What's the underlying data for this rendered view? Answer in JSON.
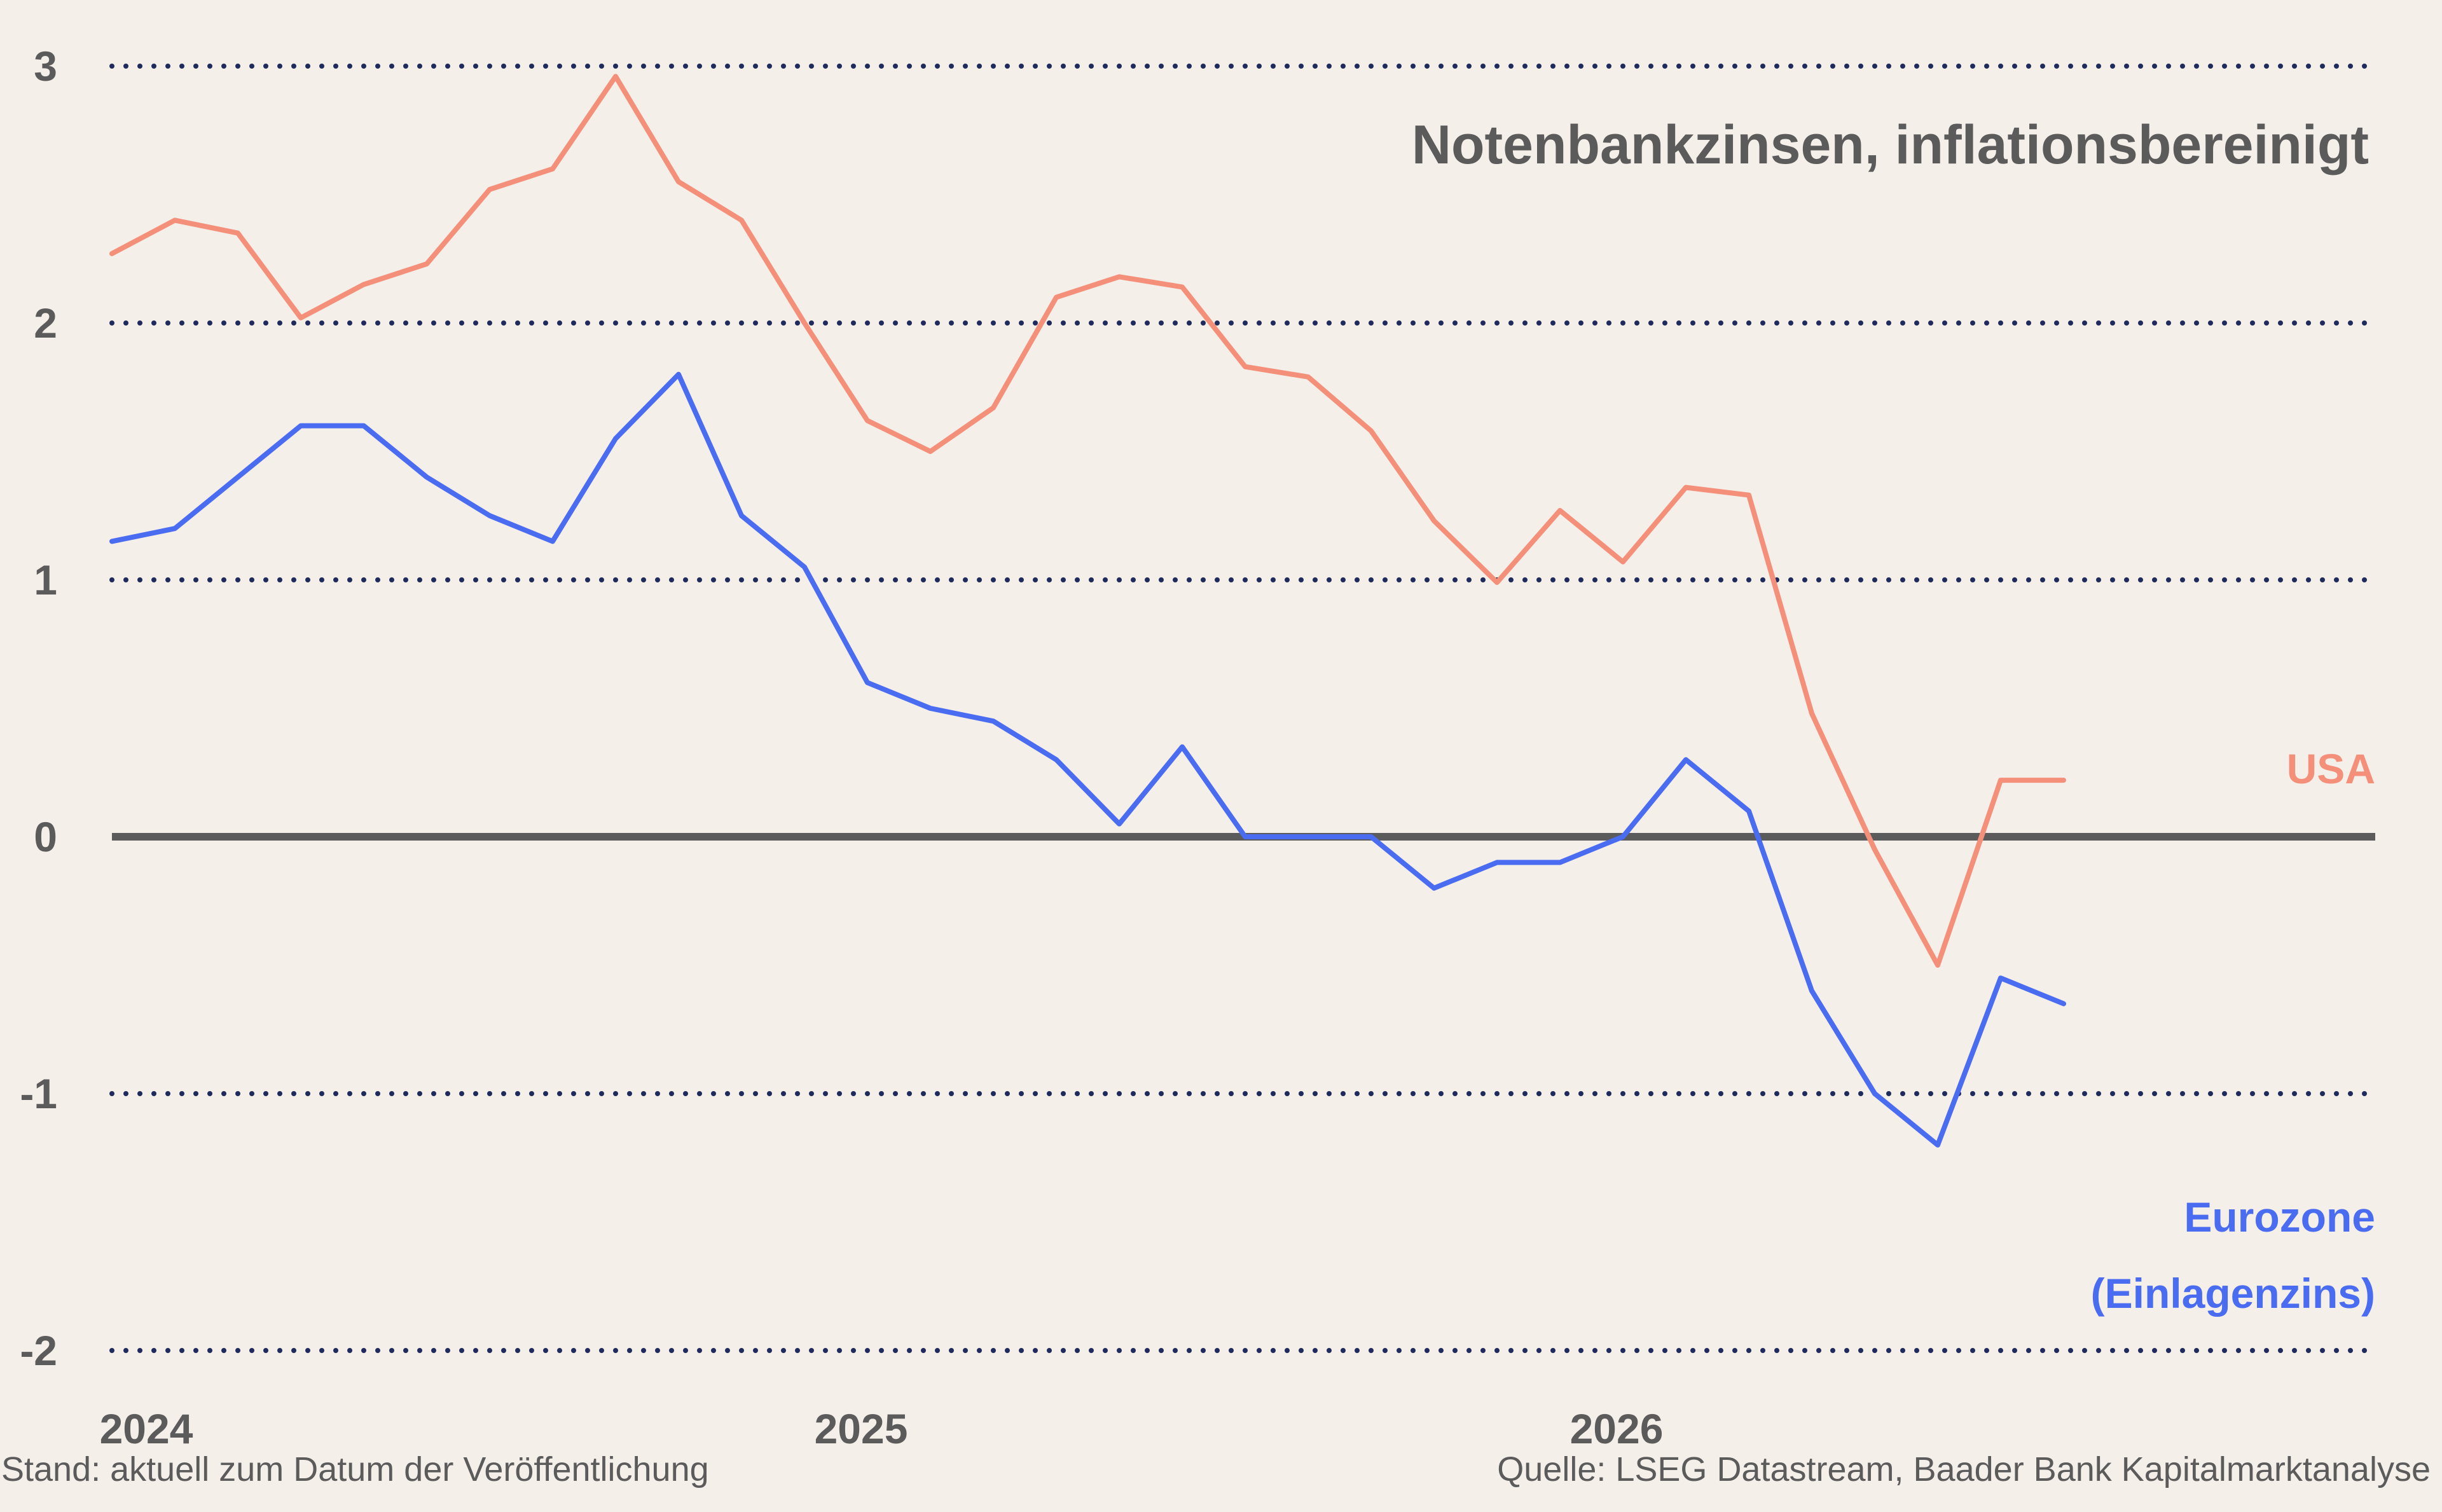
{
  "chart_data": {
    "type": "line",
    "title": "Notenbankzinsen, inflationsbereinigt",
    "ylim": [
      -2,
      3
    ],
    "yticks": [
      3,
      2,
      1,
      0,
      -1,
      -2
    ],
    "xlim": [
      "2024-01",
      "2026-12"
    ],
    "xticks": [
      {
        "label": "2024",
        "x": "2024-01"
      },
      {
        "label": "2025",
        "x": "2025-01"
      },
      {
        "label": "2026",
        "x": "2026-01"
      }
    ],
    "grid": "dotted horizontal",
    "zero_line": true,
    "x": [
      "2024-01",
      "2024-02",
      "2024-03",
      "2024-04",
      "2024-05",
      "2024-06",
      "2024-07",
      "2024-08",
      "2024-09",
      "2024-10",
      "2024-11",
      "2024-12",
      "2025-01",
      "2025-02",
      "2025-03",
      "2025-04",
      "2025-05",
      "2025-06",
      "2025-07",
      "2025-08",
      "2025-09",
      "2025-10",
      "2025-11",
      "2025-12",
      "2026-01",
      "2026-02",
      "2026-03",
      "2026-04",
      "2026-05",
      "2026-06",
      "2026-07",
      "2026-08",
      "2026-09",
      "2026-10"
    ],
    "series": [
      {
        "name": "USA",
        "color": "#f4907a",
        "values": [
          2.27,
          2.4,
          2.35,
          2.02,
          2.15,
          2.23,
          2.52,
          2.6,
          2.96,
          2.55,
          2.4,
          2.0,
          1.62,
          1.5,
          1.67,
          2.1,
          2.18,
          2.14,
          1.83,
          1.79,
          1.58,
          1.23,
          0.99,
          1.27,
          1.07,
          1.36,
          1.33,
          0.48,
          -0.05,
          -0.5,
          0.22,
          0.22,
          null,
          null
        ]
      },
      {
        "name": "Eurozone (Einlagenzins)",
        "color": "#4a6cf0",
        "values": [
          1.15,
          1.2,
          1.4,
          1.6,
          1.6,
          1.4,
          1.25,
          1.15,
          1.55,
          1.8,
          1.25,
          1.05,
          0.6,
          0.5,
          0.45,
          0.3,
          0.05,
          0.35,
          0.0,
          0.0,
          0.0,
          -0.2,
          -0.1,
          -0.1,
          0.0,
          0.3,
          0.1,
          -0.6,
          -1.0,
          -1.2,
          -0.55,
          -0.65,
          null,
          null
        ]
      }
    ],
    "series_labels": [
      {
        "lines": [
          "USA"
        ],
        "color": "#f4907a"
      },
      {
        "lines": [
          "Eurozone",
          "(Einlagenzins)"
        ],
        "color": "#4a6cf0"
      }
    ]
  },
  "footer": {
    "left": "Stand: aktuell zum Datum der Veröffentlichung",
    "right": "Quelle: LSEG Datastream, Baader Bank Kapitalmarktanalyse"
  },
  "colors": {
    "background": "#f5efea",
    "grid": "#1f2b5c",
    "zero_line": "#5b5b5b",
    "text": "#5b5b5b"
  }
}
